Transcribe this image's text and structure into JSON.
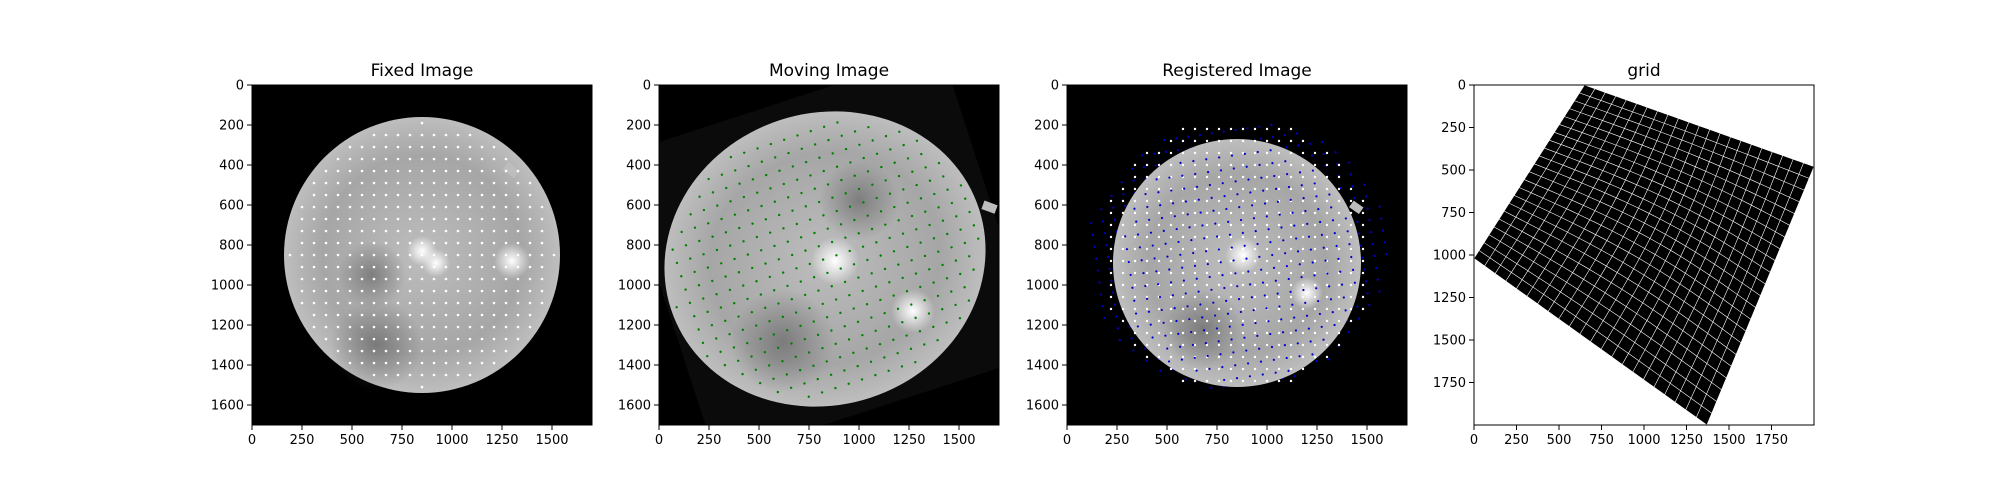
{
  "chart_data": [
    {
      "type": "image",
      "title": "Fixed Image",
      "xlim": [
        0,
        1700
      ],
      "ylim": [
        1700,
        0
      ],
      "xticks": [
        "0",
        "250",
        "500",
        "750",
        "1000",
        "1250",
        "1500"
      ],
      "yticks": [
        "0",
        "200",
        "400",
        "600",
        "800",
        "1000",
        "1200",
        "1400",
        "1600"
      ],
      "landmark_color": "#ffffff",
      "image_background": "#000000"
    },
    {
      "type": "image",
      "title": "Moving Image",
      "xlim": [
        0,
        1700
      ],
      "ylim": [
        1700,
        0
      ],
      "xticks": [
        "0",
        "250",
        "500",
        "750",
        "1000",
        "1250",
        "1500"
      ],
      "yticks": [
        "0",
        "200",
        "400",
        "600",
        "800",
        "1000",
        "1200",
        "1400",
        "1600"
      ],
      "landmark_color": "#008000",
      "image_background": "#000000"
    },
    {
      "type": "image",
      "title": "Registered Image",
      "xlim": [
        0,
        1700
      ],
      "ylim": [
        1700,
        0
      ],
      "xticks": [
        "0",
        "250",
        "500",
        "750",
        "1000",
        "1250",
        "1500"
      ],
      "yticks": [
        "0",
        "200",
        "400",
        "600",
        "800",
        "1000",
        "1200",
        "1400",
        "1600"
      ],
      "landmark_colors": [
        "#ffffff",
        "#0000cc"
      ],
      "image_background": "#000000"
    },
    {
      "type": "image",
      "title": "grid",
      "xlim": [
        0,
        2000
      ],
      "ylim": [
        2000,
        0
      ],
      "xticks": [
        "0",
        "250",
        "500",
        "750",
        "1000",
        "1250",
        "1500",
        "1750"
      ],
      "yticks": [
        "0",
        "250",
        "500",
        "750",
        "1000",
        "1250",
        "1500",
        "1750"
      ],
      "grid_color": "#ffffff",
      "image_background": "#000000"
    }
  ]
}
